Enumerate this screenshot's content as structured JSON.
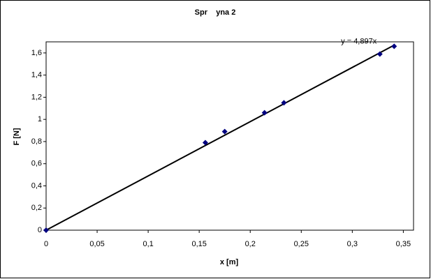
{
  "chart_data": {
    "type": "scatter",
    "title": "Spr    yna 2",
    "x_label": "x [m]",
    "y_label": "F [N]",
    "x": [
      0,
      0.156,
      0.175,
      0.214,
      0.233,
      0.327,
      0.341
    ],
    "values": [
      0,
      0.79,
      0.89,
      1.06,
      1.15,
      1.59,
      1.66
    ],
    "color": "#000080",
    "trendline": {
      "slope": 4.897,
      "label": "y = 4,897x",
      "color": "#000000"
    },
    "xlim": [
      0,
      0.36
    ],
    "xticks": [
      0,
      {
        "value": 0.05,
        "label": "0,05"
      },
      {
        "value": 0.1,
        "label": "0,1"
      },
      {
        "value": 0.15,
        "label": "0,15"
      },
      {
        "value": 0.2,
        "label": "0,2"
      },
      {
        "value": 0.25,
        "label": "0,25"
      },
      {
        "value": 0.3,
        "label": "0,3"
      },
      {
        "value": 0.35,
        "label": "0,35"
      }
    ],
    "ylim": [
      0,
      1.7
    ],
    "yticks": [
      0,
      {
        "value": 0.2,
        "label": "0,2"
      },
      {
        "value": 0.4,
        "label": "0,4"
      },
      {
        "value": 0.6,
        "label": "0,6"
      },
      {
        "value": 0.8,
        "label": "0,8"
      },
      1,
      {
        "value": 1.2,
        "label": "1,2"
      },
      {
        "value": 1.4,
        "label": "1,4"
      },
      {
        "value": 1.6,
        "label": "1,6"
      }
    ],
    "grid": false
  }
}
